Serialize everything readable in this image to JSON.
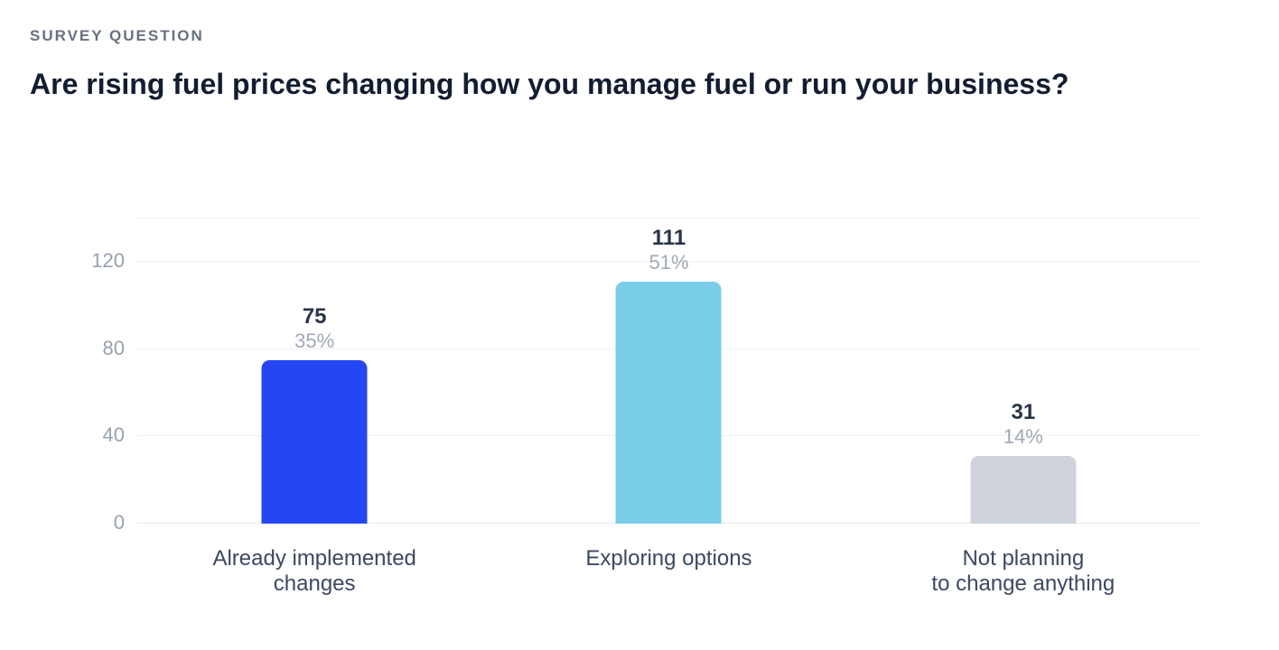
{
  "header": {
    "eyebrow": "SURVEY QUESTION",
    "title": "Are rising fuel prices changing how you manage fuel or run your business?"
  },
  "chart_data": {
    "type": "bar",
    "title": "Are rising fuel prices changing how you manage fuel or run your business?",
    "categories": [
      "Already implemented changes",
      "Exploring options",
      "Not planning to change anything"
    ],
    "values": [
      75,
      111,
      31
    ],
    "percent_labels": [
      "35%",
      "51%",
      "14%"
    ],
    "xlabel": "",
    "ylabel": "",
    "ylim": [
      0,
      140
    ],
    "ytick_values": [
      0,
      40,
      80,
      120
    ],
    "gridline_values": [
      0,
      40,
      80,
      120,
      140
    ],
    "grid": true,
    "legend": false,
    "bars": [
      {
        "category_lines": [
          "Already implemented",
          "changes"
        ],
        "value": 75,
        "percent": "35%",
        "color": "#2447f2"
      },
      {
        "category_lines": [
          "Exploring options"
        ],
        "value": 111,
        "percent": "51%",
        "color": "#7bcee7"
      },
      {
        "category_lines": [
          "Not planning",
          "to change anything"
        ],
        "value": 31,
        "percent": "14%",
        "color": "#cfd4dc"
      }
    ],
    "colors": {
      "grid": "#eef0f3",
      "baseline": "#e7e9ec",
      "tick_label": "#99a1b0",
      "count_label": "#2a3447",
      "percent_label": "#a1a9b7",
      "category_label": "#3c4860",
      "title": "#131d30",
      "eyebrow": "#68717f",
      "background": "#ffffff"
    }
  }
}
